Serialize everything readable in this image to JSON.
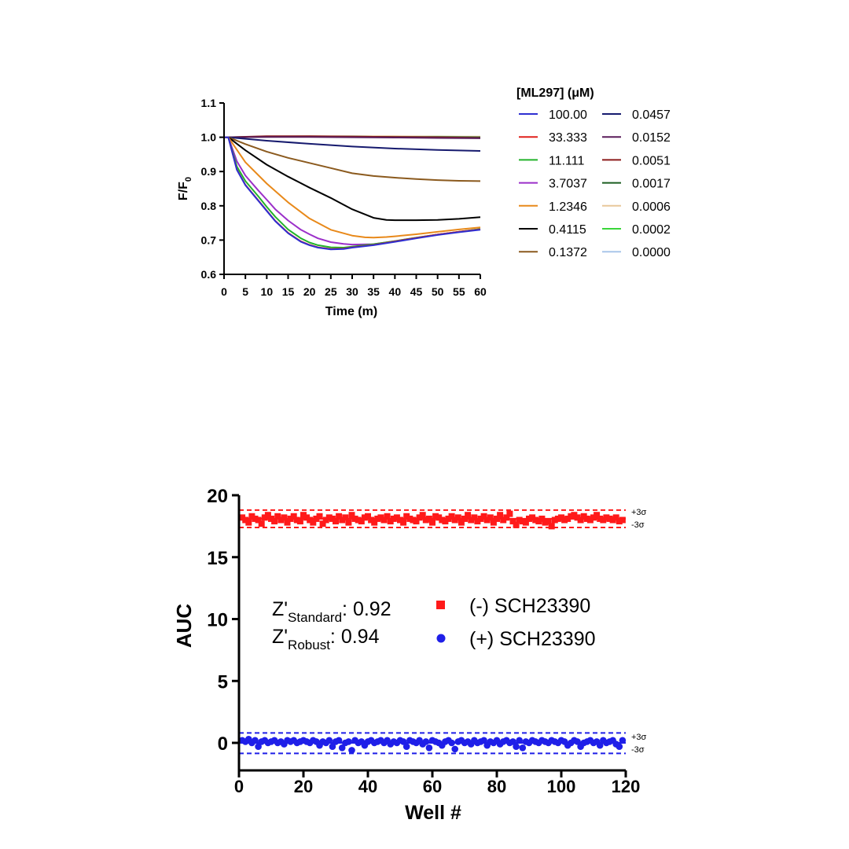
{
  "chart_data": [
    {
      "type": "line",
      "xlabel": "Time (m)",
      "ylabel_main": "F/F",
      "ylabel_sub": "0",
      "xlim": [
        0,
        60
      ],
      "ylim": [
        0.6,
        1.1
      ],
      "xticks": [
        "0",
        "5",
        "10",
        "15",
        "20",
        "25",
        "30",
        "35",
        "40",
        "45",
        "50",
        "55",
        "60"
      ],
      "yticks": [
        "0.6",
        "0.7",
        "0.8",
        "0.9",
        "1.0",
        "1.1"
      ],
      "legend_title": "[ML297] (μM)",
      "legend_placement": "right",
      "series": [
        {
          "name": "100.00",
          "color": "#2e2fd1",
          "x": [
            0,
            1,
            3,
            5,
            8,
            10,
            12,
            15,
            18,
            20,
            22,
            25,
            28,
            30,
            35,
            40,
            45,
            50,
            55,
            60
          ],
          "y": [
            1.0,
            1.0,
            0.905,
            0.86,
            0.815,
            0.785,
            0.755,
            0.72,
            0.695,
            0.685,
            0.678,
            0.673,
            0.674,
            0.678,
            0.685,
            0.695,
            0.705,
            0.715,
            0.723,
            0.73
          ]
        },
        {
          "name": "33.333",
          "color": "#e0201b",
          "x": [
            0,
            1,
            3,
            5,
            8,
            10,
            12,
            15,
            18,
            20,
            22,
            25,
            28,
            30,
            35,
            40,
            45,
            50,
            55,
            60
          ],
          "y": [
            1.0,
            1.0,
            0.906,
            0.861,
            0.816,
            0.786,
            0.756,
            0.721,
            0.696,
            0.686,
            0.679,
            0.674,
            0.675,
            0.679,
            0.686,
            0.696,
            0.706,
            0.716,
            0.724,
            0.731
          ]
        },
        {
          "name": "11.111",
          "color": "#22b22a",
          "x": [
            0,
            1,
            3,
            5,
            8,
            10,
            12,
            15,
            18,
            20,
            22,
            25,
            28,
            30,
            35,
            40,
            45,
            50,
            55,
            60
          ],
          "y": [
            1.0,
            1.0,
            0.915,
            0.872,
            0.828,
            0.797,
            0.768,
            0.731,
            0.705,
            0.693,
            0.685,
            0.679,
            0.678,
            0.681,
            0.688,
            0.697,
            0.707,
            0.716,
            0.724,
            0.732
          ]
        },
        {
          "name": "3.7037",
          "color": "#9b2fc9",
          "x": [
            0,
            1,
            3,
            5,
            8,
            10,
            12,
            15,
            18,
            20,
            22,
            25,
            28,
            30,
            35,
            40,
            45,
            50,
            55,
            60
          ],
          "y": [
            1.0,
            1.0,
            0.93,
            0.888,
            0.845,
            0.818,
            0.79,
            0.757,
            0.73,
            0.717,
            0.705,
            0.694,
            0.689,
            0.687,
            0.688,
            0.697,
            0.707,
            0.716,
            0.724,
            0.732
          ]
        },
        {
          "name": "1.2346",
          "color": "#e8891a",
          "x": [
            0,
            1,
            5,
            10,
            15,
            20,
            25,
            30,
            33,
            35,
            38,
            40,
            45,
            50,
            55,
            60
          ],
          "y": [
            1.0,
            1.0,
            0.927,
            0.865,
            0.81,
            0.763,
            0.73,
            0.713,
            0.708,
            0.707,
            0.709,
            0.711,
            0.717,
            0.724,
            0.731,
            0.737
          ]
        },
        {
          "name": "0.4115",
          "color": "#000000",
          "x": [
            0,
            1,
            5,
            10,
            15,
            20,
            25,
            30,
            35,
            38,
            40,
            45,
            50,
            55,
            60
          ],
          "y": [
            1.0,
            1.0,
            0.962,
            0.92,
            0.885,
            0.853,
            0.823,
            0.79,
            0.765,
            0.759,
            0.758,
            0.758,
            0.759,
            0.762,
            0.767
          ]
        },
        {
          "name": "0.1372",
          "color": "#8b5a1e",
          "x": [
            0,
            1,
            5,
            10,
            15,
            20,
            25,
            30,
            35,
            40,
            45,
            50,
            55,
            60
          ],
          "y": [
            1.0,
            1.0,
            0.98,
            0.958,
            0.94,
            0.925,
            0.91,
            0.895,
            0.887,
            0.882,
            0.878,
            0.875,
            0.873,
            0.872
          ]
        },
        {
          "name": "0.0457",
          "color": "#161a6e",
          "x": [
            0,
            1,
            10,
            20,
            30,
            40,
            50,
            60
          ],
          "y": [
            1.0,
            1.0,
            0.99,
            0.981,
            0.973,
            0.967,
            0.963,
            0.96
          ]
        },
        {
          "name": "0.0152",
          "color": "#5a1c5a",
          "x": [
            0,
            1,
            10,
            20,
            30,
            40,
            50,
            60
          ],
          "y": [
            1.0,
            1.0,
            1.001,
            1.001,
            1.0,
            0.999,
            0.998,
            0.997
          ]
        },
        {
          "name": "0.0051",
          "color": "#8b1a1a",
          "x": [
            0,
            1,
            10,
            20,
            30,
            40,
            50,
            60
          ],
          "y": [
            1.0,
            1.0,
            1.003,
            1.003,
            1.002,
            1.001,
            1.0,
            0.998
          ]
        },
        {
          "name": "0.0017",
          "color": "#1b5e20",
          "x": [
            0,
            1,
            10,
            20,
            30,
            40,
            50,
            60
          ],
          "y": [
            1.0,
            1.0,
            1.002,
            1.002,
            1.002,
            1.001,
            1.001,
            1.0
          ]
        },
        {
          "name": "0.0006",
          "color": "#e8c79a",
          "x": [
            0,
            1,
            10,
            20,
            30,
            40,
            50,
            60
          ],
          "y": [
            1.0,
            1.0,
            1.002,
            1.003,
            1.003,
            1.003,
            1.002,
            1.002
          ]
        },
        {
          "name": "0.0002",
          "color": "#3ad63a",
          "x": [
            0,
            1,
            10,
            20,
            30,
            40,
            50,
            60
          ],
          "y": [
            1.0,
            1.0,
            1.002,
            1.002,
            1.002,
            1.002,
            1.002,
            1.001
          ]
        },
        {
          "name": "0.0000",
          "color": "#a9c6ea",
          "x": [
            0,
            1,
            10,
            20,
            30,
            40,
            50,
            60
          ],
          "y": [
            1.0,
            1.0,
            1.001,
            1.002,
            1.002,
            1.002,
            1.001,
            1.001
          ]
        }
      ]
    },
    {
      "type": "scatter",
      "xlabel": "Well #",
      "ylabel": "AUC",
      "xlim": [
        0,
        120
      ],
      "ylim": [
        -1,
        20
      ],
      "xticks": [
        "0",
        "20",
        "40",
        "60",
        "80",
        "100",
        "120"
      ],
      "yticks": [
        "0",
        "5",
        "10",
        "15",
        "20"
      ],
      "annotations": {
        "z_std_pre": "Z'",
        "z_std_sub": "Standard",
        "z_std_val": ": 0.92",
        "z_rob_pre": "Z'",
        "z_rob_sub": "Robust",
        "z_rob_val": ": 0.94",
        "plus3": "+3σ",
        "minus3": "-3σ"
      },
      "series": [
        {
          "name": "(-) SCH23390",
          "color": "#ff1a1a",
          "marker": "square",
          "mean": 18.1,
          "upper_3sigma": 18.8,
          "lower_3sigma": 17.4,
          "x": [
            1,
            2,
            3,
            4,
            5,
            6,
            7,
            8,
            9,
            10,
            11,
            12,
            13,
            14,
            15,
            16,
            17,
            18,
            19,
            20,
            21,
            22,
            23,
            24,
            25,
            26,
            27,
            28,
            29,
            30,
            31,
            32,
            33,
            34,
            35,
            36,
            37,
            38,
            39,
            40,
            41,
            42,
            43,
            44,
            45,
            46,
            47,
            48,
            49,
            50,
            51,
            52,
            53,
            54,
            55,
            56,
            57,
            58,
            59,
            60,
            61,
            62,
            63,
            64,
            65,
            66,
            67,
            68,
            69,
            70,
            71,
            72,
            73,
            74,
            75,
            76,
            77,
            78,
            79,
            80,
            81,
            82,
            83,
            84,
            85,
            86,
            87,
            88,
            89,
            90,
            91,
            92,
            93,
            94,
            95,
            96,
            97,
            98,
            99,
            100,
            101,
            102,
            103,
            104,
            105,
            106,
            107,
            108,
            109,
            110,
            111,
            112,
            113,
            114,
            115,
            116,
            117,
            118,
            119
          ],
          "y": [
            18.2,
            18.0,
            17.8,
            18.3,
            18.1,
            18.0,
            17.7,
            18.2,
            18.4,
            18.1,
            17.9,
            18.3,
            18.0,
            18.2,
            17.8,
            18.1,
            18.3,
            18.0,
            17.9,
            18.4,
            18.2,
            18.0,
            17.8,
            18.1,
            18.3,
            17.7,
            18.0,
            18.2,
            18.1,
            17.9,
            18.3,
            18.0,
            18.2,
            17.8,
            18.4,
            18.1,
            18.0,
            17.9,
            18.2,
            18.3,
            18.0,
            17.8,
            18.1,
            18.2,
            18.0,
            18.3,
            17.9,
            18.1,
            18.2,
            18.0,
            17.8,
            18.3,
            18.1,
            18.0,
            17.9,
            18.2,
            18.4,
            18.0,
            18.1,
            17.8,
            18.3,
            18.2,
            18.0,
            17.9,
            18.1,
            18.3,
            18.0,
            18.2,
            17.8,
            18.1,
            18.4,
            18.0,
            18.2,
            17.9,
            18.1,
            18.3,
            18.0,
            18.2,
            17.8,
            18.1,
            18.4,
            18.0,
            18.2,
            18.5,
            17.9,
            17.6,
            18.0,
            17.9,
            17.8,
            18.1,
            18.2,
            18.0,
            17.9,
            18.1,
            17.8,
            17.9,
            17.5,
            18.0,
            18.1,
            18.2,
            18.0,
            18.1,
            18.3,
            18.4,
            18.2,
            18.0,
            18.3,
            18.1,
            18.0,
            18.2,
            18.4,
            18.1,
            18.0,
            18.2,
            18.1,
            18.0,
            18.2,
            17.9,
            18.0
          ]
        },
        {
          "name": "(+) SCH23390",
          "color": "#1f1fe8",
          "marker": "circle",
          "mean": 0.0,
          "upper_3sigma": 0.8,
          "lower_3sigma": -0.85,
          "x": [
            1,
            2,
            3,
            4,
            5,
            6,
            7,
            8,
            9,
            10,
            11,
            12,
            13,
            14,
            15,
            16,
            17,
            18,
            19,
            20,
            21,
            22,
            23,
            24,
            25,
            26,
            27,
            28,
            29,
            30,
            31,
            32,
            33,
            34,
            35,
            36,
            37,
            38,
            39,
            40,
            41,
            42,
            43,
            44,
            45,
            46,
            47,
            48,
            49,
            50,
            51,
            52,
            53,
            54,
            55,
            56,
            57,
            58,
            59,
            60,
            61,
            62,
            63,
            64,
            65,
            66,
            67,
            68,
            69,
            70,
            71,
            72,
            73,
            74,
            75,
            76,
            77,
            78,
            79,
            80,
            81,
            82,
            83,
            84,
            85,
            86,
            87,
            88,
            89,
            90,
            91,
            92,
            93,
            94,
            95,
            96,
            97,
            98,
            99,
            100,
            101,
            102,
            103,
            104,
            105,
            106,
            107,
            108,
            109,
            110,
            111,
            112,
            113,
            114,
            115,
            116,
            117,
            118,
            119
          ],
          "y": [
            0.2,
            0.1,
            0.3,
            0.0,
            0.2,
            -0.3,
            0.1,
            0.2,
            0.0,
            0.1,
            0.2,
            0.0,
            0.1,
            -0.1,
            0.2,
            0.1,
            0.2,
            0.0,
            0.1,
            0.2,
            0.1,
            0.0,
            0.2,
            0.1,
            -0.2,
            0.1,
            0.0,
            0.2,
            -0.3,
            0.1,
            0.2,
            -0.4,
            0.0,
            0.1,
            -0.6,
            0.2,
            0.0,
            0.1,
            -0.2,
            0.1,
            0.2,
            0.0,
            0.1,
            0.2,
            0.0,
            0.2,
            -0.1,
            0.1,
            0.0,
            0.2,
            0.1,
            -0.3,
            0.2,
            0.1,
            0.0,
            0.2,
            -0.1,
            0.1,
            -0.4,
            0.2,
            0.1,
            0.0,
            -0.2,
            0.1,
            0.2,
            0.0,
            -0.5,
            0.1,
            0.2,
            0.0,
            0.1,
            -0.1,
            0.2,
            0.0,
            0.1,
            0.2,
            -0.2,
            0.1,
            0.0,
            0.2,
            -0.1,
            0.1,
            0.2,
            0.0,
            0.1,
            -0.3,
            0.2,
            -0.4,
            0.1,
            0.0,
            0.2,
            0.1,
            0.0,
            0.2,
            0.1,
            0.0,
            0.2,
            0.1,
            0.0,
            0.2,
            0.1,
            -0.2,
            0.0,
            0.2,
            0.1,
            -0.3,
            0.0,
            0.1,
            0.2,
            0.0,
            0.1,
            -0.2,
            0.2,
            0.0,
            0.1,
            0.2,
            -0.1,
            -0.3,
            0.2
          ]
        }
      ]
    }
  ]
}
